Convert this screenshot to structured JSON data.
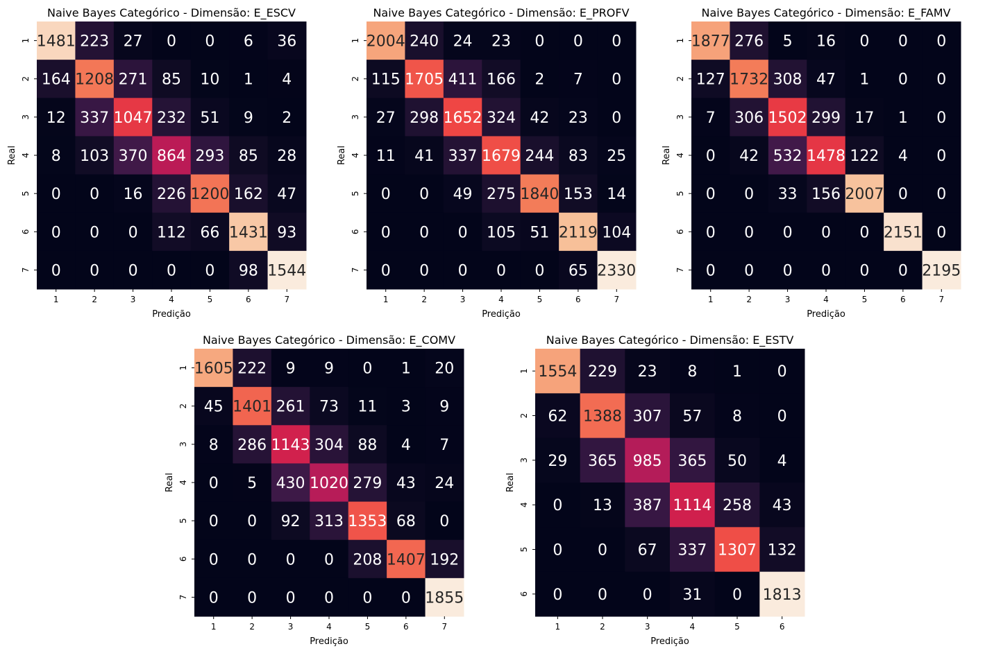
{
  "chart_data": [
    {
      "type": "heatmap",
      "title": "Naive Bayes Categórico - Dimensão:  E_ESCV",
      "xlabel": "Predição",
      "ylabel": "Real",
      "categories": [
        "1",
        "2",
        "3",
        "4",
        "5",
        "6",
        "7"
      ],
      "values": [
        [
          1481,
          223,
          27,
          0,
          0,
          6,
          36
        ],
        [
          164,
          1208,
          271,
          85,
          10,
          1,
          4
        ],
        [
          12,
          337,
          1047,
          232,
          51,
          9,
          2
        ],
        [
          8,
          103,
          370,
          864,
          293,
          85,
          28
        ],
        [
          0,
          0,
          16,
          226,
          1200,
          162,
          47
        ],
        [
          0,
          0,
          0,
          112,
          66,
          1431,
          93
        ],
        [
          0,
          0,
          0,
          0,
          0,
          98,
          1544
        ]
      ]
    },
    {
      "type": "heatmap",
      "title": "Naive Bayes Categórico - Dimensão:  E_PROFV",
      "xlabel": "Predição",
      "ylabel": "Real",
      "categories": [
        "1",
        "2",
        "3",
        "4",
        "5",
        "6",
        "7"
      ],
      "values": [
        [
          2004,
          240,
          24,
          23,
          0,
          0,
          0
        ],
        [
          115,
          1705,
          411,
          166,
          2,
          7,
          0
        ],
        [
          27,
          298,
          1652,
          324,
          42,
          23,
          0
        ],
        [
          11,
          41,
          337,
          1679,
          244,
          83,
          25
        ],
        [
          0,
          0,
          49,
          275,
          1840,
          153,
          14
        ],
        [
          0,
          0,
          0,
          105,
          51,
          2119,
          104
        ],
        [
          0,
          0,
          0,
          0,
          0,
          65,
          2330
        ]
      ]
    },
    {
      "type": "heatmap",
      "title": "Naive Bayes Categórico - Dimensão:  E_FAMV",
      "xlabel": "Predição",
      "ylabel": "Real",
      "categories": [
        "1",
        "2",
        "3",
        "4",
        "5",
        "6",
        "7"
      ],
      "values": [
        [
          1877,
          276,
          5,
          16,
          0,
          0,
          0
        ],
        [
          127,
          1732,
          308,
          47,
          1,
          0,
          0
        ],
        [
          7,
          306,
          1502,
          299,
          17,
          1,
          0
        ],
        [
          0,
          42,
          532,
          1478,
          122,
          4,
          0
        ],
        [
          0,
          0,
          33,
          156,
          2007,
          0,
          0
        ],
        [
          0,
          0,
          0,
          0,
          0,
          2151,
          0
        ],
        [
          0,
          0,
          0,
          0,
          0,
          0,
          2195
        ]
      ]
    },
    {
      "type": "heatmap",
      "title": "Naive Bayes Categórico - Dimensão:  E_COMV",
      "xlabel": "Predição",
      "ylabel": "Real",
      "categories": [
        "1",
        "2",
        "3",
        "4",
        "5",
        "6",
        "7"
      ],
      "values": [
        [
          1605,
          222,
          9,
          9,
          0,
          1,
          20
        ],
        [
          45,
          1401,
          261,
          73,
          11,
          3,
          9
        ],
        [
          8,
          286,
          1143,
          304,
          88,
          4,
          7
        ],
        [
          0,
          5,
          430,
          1020,
          279,
          43,
          24
        ],
        [
          0,
          0,
          92,
          313,
          1353,
          68,
          0
        ],
        [
          0,
          0,
          0,
          0,
          208,
          1407,
          192
        ],
        [
          0,
          0,
          0,
          0,
          0,
          0,
          1855
        ]
      ]
    },
    {
      "type": "heatmap",
      "title": "Naive Bayes Categórico - Dimensão:  E_ESTV",
      "xlabel": "Predição",
      "ylabel": "Real",
      "categories": [
        "1",
        "2",
        "3",
        "4",
        "5",
        "6"
      ],
      "values": [
        [
          1554,
          229,
          23,
          8,
          1,
          0
        ],
        [
          62,
          1388,
          307,
          57,
          8,
          0
        ],
        [
          29,
          365,
          985,
          365,
          50,
          4
        ],
        [
          0,
          13,
          387,
          1114,
          258,
          43
        ],
        [
          0,
          0,
          67,
          337,
          1307,
          132
        ],
        [
          0,
          0,
          0,
          31,
          0,
          1813
        ]
      ]
    }
  ]
}
